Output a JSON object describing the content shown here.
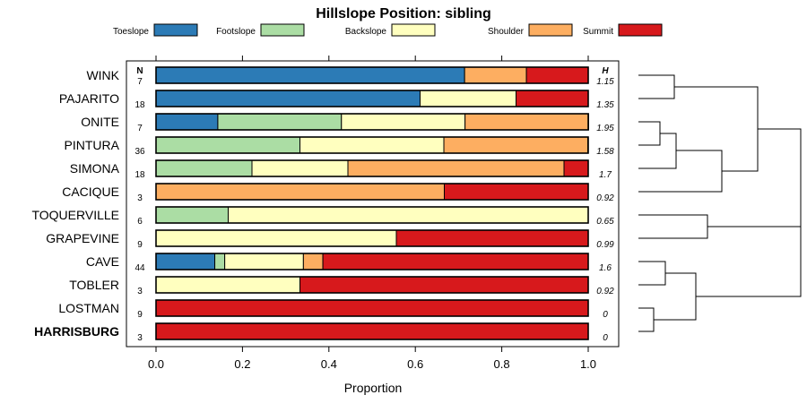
{
  "chart_data": {
    "type": "bar",
    "orientation": "horizontal",
    "stacked": true,
    "title": "Hillslope Position: sibling",
    "xlabel": "Proportion",
    "ylabel": "",
    "xlim": [
      0,
      1
    ],
    "x_ticks": [
      0.0,
      0.2,
      0.4,
      0.6,
      0.8,
      1.0
    ],
    "x_tick_labels": [
      "0.0",
      "0.2",
      "0.4",
      "0.6",
      "0.8",
      "1.0"
    ],
    "n_header": "N",
    "h_header": "H",
    "legend": [
      {
        "name": "Toeslope",
        "color": "#2c7bb6"
      },
      {
        "name": "Footslope",
        "color": "#abdda4"
      },
      {
        "name": "Backslope",
        "color": "#ffffbf"
      },
      {
        "name": "Shoulder",
        "color": "#fdae61"
      },
      {
        "name": "Summit",
        "color": "#d7191c"
      }
    ],
    "legend_position": "top",
    "categories": [
      "WINK",
      "PAJARITO",
      "ONITE",
      "PINTURA",
      "SIMONA",
      "CACIQUE",
      "TOQUERVILLE",
      "GRAPEVINE",
      "CAVE",
      "TOBLER",
      "LOSTMAN",
      "HARRISBURG"
    ],
    "highlight": "HARRISBURG",
    "n": [
      7,
      18,
      7,
      36,
      18,
      3,
      6,
      9,
      44,
      3,
      9,
      3
    ],
    "h": [
      "1.15",
      "1.35",
      "1.95",
      "1.58",
      "1.7",
      "0.92",
      "0.65",
      "0.99",
      "1.6",
      "0.92",
      "0",
      "0"
    ],
    "series": [
      {
        "name": "Toeslope",
        "values": [
          0.714,
          0.611,
          0.143,
          0,
          0,
          0,
          0,
          0,
          0.136,
          0,
          0,
          0
        ]
      },
      {
        "name": "Footslope",
        "values": [
          0,
          0,
          0.286,
          0.333,
          0.222,
          0,
          0.167,
          0,
          0.023,
          0,
          0,
          0
        ]
      },
      {
        "name": "Backslope",
        "values": [
          0,
          0.222,
          0.286,
          0.333,
          0.222,
          0,
          0.833,
          0.556,
          0.182,
          0.333,
          0,
          0
        ]
      },
      {
        "name": "Shoulder",
        "values": [
          0.143,
          0,
          0.286,
          0.333,
          0.5,
          0.667,
          0,
          0,
          0.045,
          0,
          0,
          0
        ]
      },
      {
        "name": "Summit",
        "values": [
          0.143,
          0.167,
          0,
          0,
          0.056,
          0.333,
          0,
          0.444,
          0.614,
          0.667,
          1,
          1
        ]
      }
    ],
    "dendrogram": "hierarchical clustering of rows shown at right"
  }
}
